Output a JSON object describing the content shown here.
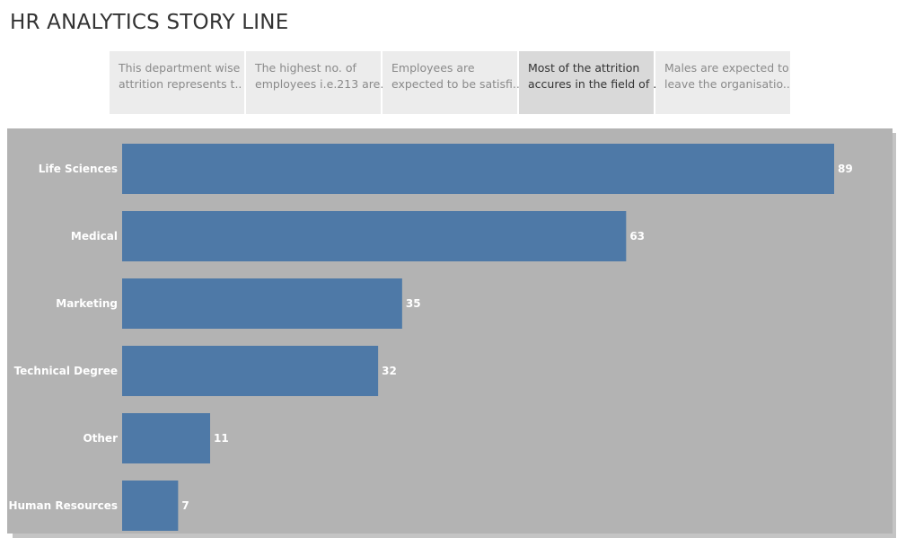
{
  "story": {
    "title": "HR ANALYTICS STORY LINE",
    "points": [
      {
        "line1": "This department wise",
        "line2": "attrition represents t..",
        "active": false
      },
      {
        "line1": "The highest no. of",
        "line2": "employees i.e.213 are..",
        "active": false
      },
      {
        "line1": "Employees are",
        "line2": "expected to be satisfi..",
        "active": false
      },
      {
        "line1": "Most of the attrition",
        "line2": "accures in the field of ..",
        "active": true
      },
      {
        "line1": "Males are expected to",
        "line2": "leave the organisatio..",
        "active": false
      }
    ]
  },
  "colors": {
    "bar": "#4e79a7",
    "panel": "#b3b3b3",
    "label": "#ffffff"
  },
  "chart_data": {
    "type": "bar",
    "orientation": "horizontal",
    "categories": [
      "Life Sciences",
      "Medical",
      "Marketing",
      "Technical Degree",
      "Other",
      "Human Resources"
    ],
    "values": [
      89,
      63,
      35,
      32,
      11,
      7
    ],
    "title": "",
    "xlabel": "",
    "ylabel": "",
    "xlim": [
      0,
      89
    ],
    "grid": false
  }
}
